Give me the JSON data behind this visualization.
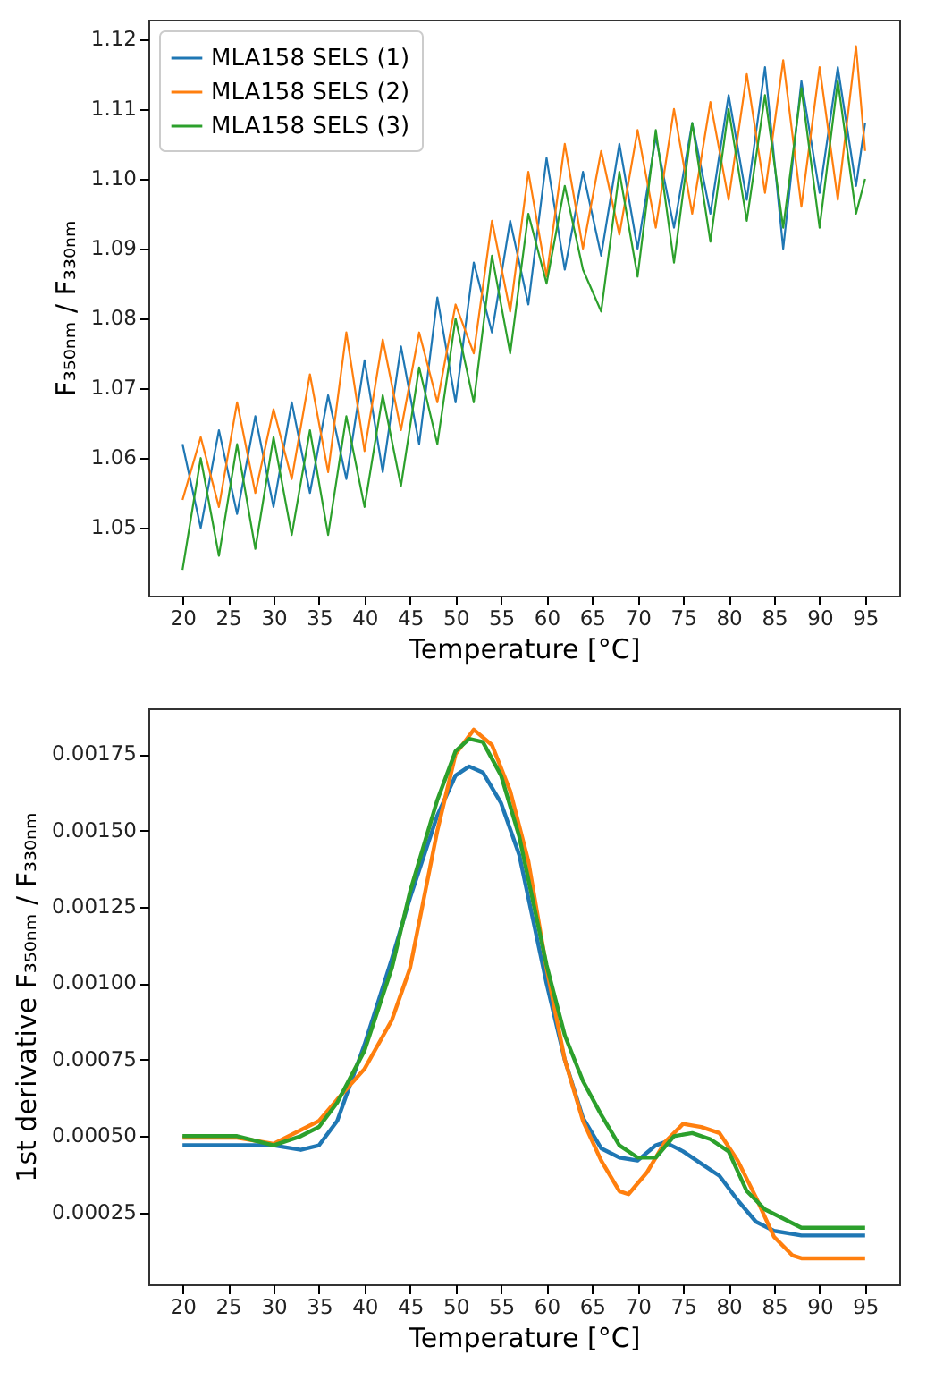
{
  "chart_data": [
    {
      "type": "line",
      "xlabel": "Temperature [°C]",
      "ylabel": "F₃₅₀ₙₘ / F₃₃₀ₙₘ",
      "legend": "top left",
      "grid": false,
      "xlim": [
        16.25,
        98.75
      ],
      "xticks": [
        20,
        25,
        30,
        35,
        40,
        45,
        50,
        55,
        60,
        65,
        70,
        75,
        80,
        85,
        90,
        95
      ],
      "ylim": [
        1.0403,
        1.1228
      ],
      "yticks": [
        1.05,
        1.06,
        1.07,
        1.08,
        1.09,
        {
          "value": 1.1,
          "label": "1.10"
        },
        1.11,
        1.12
      ],
      "x": [
        20,
        22,
        24,
        26,
        28,
        30,
        32,
        34,
        36,
        38,
        40,
        42,
        44,
        46,
        48,
        50,
        52,
        54,
        56,
        58,
        60,
        62,
        64,
        66,
        68,
        70,
        72,
        74,
        76,
        78,
        80,
        82,
        84,
        86,
        88,
        90,
        92,
        94,
        95
      ],
      "series": [
        {
          "name": "MLA158 SELS (1)",
          "color": "#1f77b4",
          "values": [
            1.062,
            1.05,
            1.064,
            1.052,
            1.066,
            1.053,
            1.068,
            1.055,
            1.069,
            1.057,
            1.074,
            1.058,
            1.076,
            1.062,
            1.083,
            1.068,
            1.088,
            1.078,
            1.094,
            1.082,
            1.103,
            1.087,
            1.101,
            1.089,
            1.105,
            1.09,
            1.106,
            1.093,
            1.108,
            1.095,
            1.112,
            1.097,
            1.116,
            1.09,
            1.114,
            1.098,
            1.116,
            1.099,
            1.108
          ]
        },
        {
          "name": "MLA158 SELS (2)",
          "color": "#ff7f0e",
          "values": [
            1.054,
            1.063,
            1.053,
            1.068,
            1.055,
            1.067,
            1.057,
            1.072,
            1.058,
            1.078,
            1.061,
            1.077,
            1.064,
            1.078,
            1.068,
            1.082,
            1.075,
            1.094,
            1.081,
            1.101,
            1.086,
            1.105,
            1.09,
            1.104,
            1.092,
            1.107,
            1.093,
            1.11,
            1.095,
            1.111,
            1.097,
            1.115,
            1.098,
            1.117,
            1.096,
            1.116,
            1.097,
            1.119,
            1.104
          ]
        },
        {
          "name": "MLA158 SELS (3)",
          "color": "#2ca02c",
          "values": [
            1.044,
            1.06,
            1.046,
            1.062,
            1.047,
            1.063,
            1.049,
            1.064,
            1.049,
            1.066,
            1.053,
            1.069,
            1.056,
            1.073,
            1.062,
            1.08,
            1.068,
            1.089,
            1.075,
            1.095,
            1.085,
            1.099,
            1.087,
            1.081,
            1.101,
            1.086,
            1.107,
            1.088,
            1.108,
            1.091,
            1.11,
            1.094,
            1.112,
            1.093,
            1.113,
            1.093,
            1.114,
            1.095,
            1.1
          ]
        }
      ]
    },
    {
      "type": "line",
      "xlabel": "Temperature [°C]",
      "ylabel": "1st derivative  F₃₅₀ₙₘ / F₃₃₀ₙₘ",
      "grid": false,
      "xlim": [
        16.25,
        98.75
      ],
      "xticks": [
        20,
        25,
        30,
        35,
        40,
        45,
        50,
        55,
        60,
        65,
        70,
        75,
        80,
        85,
        90,
        95
      ],
      "ylim": [
        1.5e-05,
        0.0019
      ],
      "yticks": [
        0.00025,
        {
          "value": 0.0005,
          "label": "0.00050"
        },
        0.00075,
        {
          "value": 0.001,
          "label": "0.00100"
        },
        0.00125,
        {
          "value": 0.0015,
          "label": "0.00150"
        },
        0.00175
      ],
      "series": [
        {
          "color": "#1f77b4",
          "x": [
            20,
            25,
            30,
            33,
            35,
            37,
            40,
            43,
            45,
            48,
            50,
            51.5,
            53,
            55,
            57,
            60,
            62,
            64,
            66,
            68,
            70,
            72,
            73,
            75,
            77,
            79,
            81,
            83,
            85,
            88,
            95
          ],
          "values": [
            0.00047,
            0.00047,
            0.00047,
            0.000455,
            0.00047,
            0.00055,
            0.0008,
            0.00108,
            0.00128,
            0.00155,
            0.00168,
            0.00171,
            0.00169,
            0.00159,
            0.00142,
            0.001,
            0.00075,
            0.00056,
            0.00046,
            0.00043,
            0.00042,
            0.00047,
            0.00048,
            0.00045,
            0.00041,
            0.00037,
            0.00029,
            0.00022,
            0.00019,
            0.000175,
            0.000175
          ]
        },
        {
          "color": "#ff7f0e",
          "x": [
            20,
            26,
            30,
            33,
            35,
            37,
            40,
            43,
            45,
            48,
            50,
            52,
            54,
            56,
            58,
            60,
            62,
            64,
            66,
            68,
            69,
            71,
            73,
            75,
            77,
            79,
            81,
            83,
            85,
            87,
            88,
            95
          ],
          "values": [
            0.000495,
            0.000495,
            0.000475,
            0.00052,
            0.00055,
            0.00062,
            0.00072,
            0.00088,
            0.00105,
            0.0015,
            0.00175,
            0.00183,
            0.00178,
            0.00163,
            0.0014,
            0.00105,
            0.00075,
            0.00055,
            0.00042,
            0.00032,
            0.00031,
            0.00038,
            0.00048,
            0.00054,
            0.00053,
            0.00051,
            0.00042,
            0.0003,
            0.00017,
            0.00011,
            0.0001,
            0.0001
          ]
        },
        {
          "color": "#2ca02c",
          "x": [
            20,
            26,
            30,
            33,
            35,
            37,
            40,
            43,
            45,
            48,
            50,
            51.5,
            53,
            55,
            57,
            60,
            62,
            64,
            66,
            68,
            70,
            72,
            74,
            76,
            78,
            80,
            82,
            84,
            86,
            88,
            95
          ],
          "values": [
            0.0005,
            0.0005,
            0.00047,
            0.0005,
            0.00053,
            0.00061,
            0.00078,
            0.00105,
            0.0013,
            0.0016,
            0.00176,
            0.0018,
            0.00179,
            0.00168,
            0.00148,
            0.00106,
            0.00083,
            0.00068,
            0.00057,
            0.00047,
            0.00043,
            0.00043,
            0.0005,
            0.00051,
            0.00049,
            0.00045,
            0.00032,
            0.00026,
            0.00023,
            0.0002,
            0.0002
          ]
        }
      ]
    }
  ]
}
